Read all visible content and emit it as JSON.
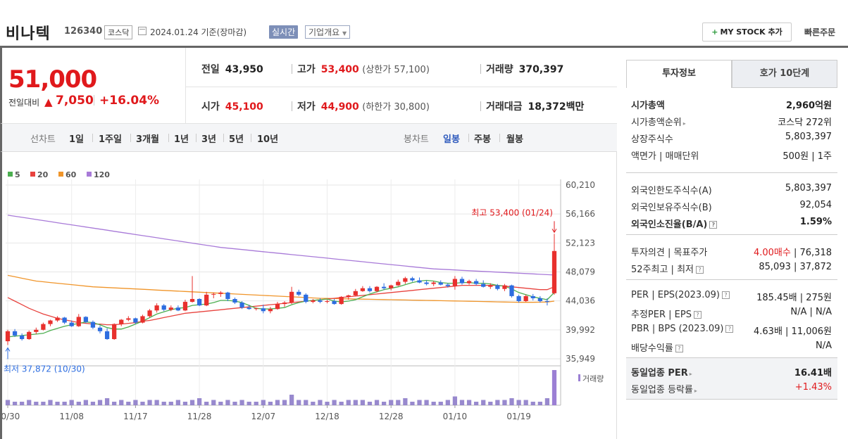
{
  "header": {
    "name": "비나텍",
    "code": "126340",
    "market": "코스닥",
    "date": "2024.01.24 기준(장마감)",
    "realtime": "실시간",
    "company_info": "기업개요",
    "mystock": "MY STOCK 추가",
    "quick_order": "빠른주문"
  },
  "price": {
    "current": "51,000",
    "change_label": "전일대비",
    "change": "7,050",
    "rate": "+16.04%"
  },
  "stats": {
    "prev_label": "전일",
    "prev": "43,950",
    "high_label": "고가",
    "high": "53,400",
    "upper_limit": "(상한가 57,100)",
    "volume_label": "거래량",
    "volume": "370,397",
    "open_label": "시가",
    "open": "45,100",
    "low_label": "저가",
    "low": "44,900",
    "lower_limit": "(하한가 30,800)",
    "amount_label": "거래대금",
    "amount": "18,372",
    "amount_unit": "백만"
  },
  "toolbar": {
    "line_label": "선차트",
    "periods": [
      "1일",
      "1주일",
      "3개월",
      "1년",
      "3년",
      "5년",
      "10년"
    ],
    "candle_label": "봉차트",
    "candles": [
      "일봉",
      "주봉",
      "월봉"
    ],
    "active_candle": "일봉"
  },
  "chart_data": {
    "type": "candlestick",
    "legend": [
      {
        "name": "5",
        "color": "#4caf50"
      },
      {
        "name": "20",
        "color": "#e8433e"
      },
      {
        "name": "60",
        "color": "#f0952a"
      },
      {
        "name": "120",
        "color": "#a87ad8"
      }
    ],
    "y_ticks": [
      "60,210",
      "56,166",
      "52,123",
      "48,079",
      "44,036",
      "39,992",
      "35,949"
    ],
    "ylim": [
      35949,
      60210
    ],
    "x_ticks": [
      "10/30",
      "11/08",
      "11/17",
      "11/28",
      "12/07",
      "12/18",
      "12/28",
      "01/10",
      "01/19"
    ],
    "high_annotation": "최고 53,400 (01/24)",
    "low_annotation": "최저 37,872 (10/30)",
    "volume_label": "거래량",
    "candles": [
      [
        38400,
        40000,
        37872,
        39800
      ],
      [
        39800,
        40100,
        39000,
        39200
      ],
      [
        39200,
        39500,
        38500,
        38700
      ],
      [
        38700,
        39900,
        38600,
        39700
      ],
      [
        39700,
        40300,
        39400,
        40000
      ],
      [
        40000,
        41000,
        39900,
        40800
      ],
      [
        40800,
        41400,
        40500,
        41300
      ],
      [
        41300,
        41900,
        41100,
        41700
      ],
      [
        41700,
        41800,
        40800,
        41000
      ],
      [
        41000,
        41300,
        40400,
        40500
      ],
      [
        40500,
        42200,
        40400,
        41800
      ],
      [
        41800,
        41900,
        40900,
        41100
      ],
      [
        41100,
        41300,
        40100,
        40300
      ],
      [
        40300,
        40600,
        39500,
        39800
      ],
      [
        39800,
        40200,
        38600,
        38700
      ],
      [
        38700,
        40900,
        38600,
        40800
      ],
      [
        40800,
        41500,
        40500,
        41400
      ],
      [
        41400,
        41900,
        41200,
        41600
      ],
      [
        41600,
        41700,
        40800,
        41000
      ],
      [
        41000,
        42100,
        40900,
        41900
      ],
      [
        41900,
        42900,
        41700,
        42700
      ],
      [
        42700,
        43700,
        42400,
        43400
      ],
      [
        43400,
        43600,
        42600,
        42800
      ],
      [
        42800,
        43400,
        42600,
        43100
      ],
      [
        43100,
        43400,
        42600,
        42700
      ],
      [
        42700,
        44200,
        42600,
        43900
      ],
      [
        43900,
        47500,
        43800,
        44300
      ],
      [
        44300,
        44400,
        43300,
        43400
      ],
      [
        43400,
        45300,
        43300,
        44900
      ],
      [
        44900,
        45200,
        44400,
        45000
      ],
      [
        45000,
        45400,
        44600,
        45200
      ],
      [
        45200,
        45300,
        44000,
        44300
      ],
      [
        44300,
        44500,
        43600,
        43800
      ],
      [
        43800,
        44000,
        42900,
        43100
      ],
      [
        43100,
        43500,
        42800,
        42900
      ],
      [
        42900,
        43100,
        42700,
        43000
      ],
      [
        43000,
        43500,
        42300,
        42600
      ],
      [
        42600,
        43200,
        42300,
        42900
      ],
      [
        42900,
        43900,
        42800,
        43600
      ],
      [
        43600,
        44000,
        43200,
        43800
      ],
      [
        43800,
        46000,
        43600,
        45300
      ],
      [
        45300,
        45600,
        44700,
        44900
      ],
      [
        44900,
        45100,
        43700,
        43900
      ],
      [
        43900,
        44300,
        43700,
        44100
      ],
      [
        44100,
        44400,
        43700,
        43900
      ],
      [
        43900,
        44200,
        43700,
        44000
      ],
      [
        44000,
        44300,
        43500,
        43600
      ],
      [
        43600,
        44700,
        43500,
        44600
      ],
      [
        44600,
        44900,
        44200,
        44800
      ],
      [
        44800,
        45700,
        44700,
        45400
      ],
      [
        45400,
        46100,
        45300,
        45800
      ],
      [
        45800,
        46100,
        45200,
        45400
      ],
      [
        45400,
        46100,
        45200,
        46000
      ],
      [
        46000,
        46500,
        45600,
        45800
      ],
      [
        45800,
        46300,
        45500,
        46200
      ],
      [
        46200,
        47000,
        46100,
        46700
      ],
      [
        46700,
        47400,
        46400,
        47200
      ],
      [
        47200,
        47400,
        46700,
        46900
      ],
      [
        46900,
        47300,
        46500,
        46600
      ],
      [
        46600,
        46900,
        46200,
        46400
      ],
      [
        46400,
        46800,
        46100,
        46600
      ],
      [
        46600,
        46900,
        46200,
        46300
      ],
      [
        46300,
        46500,
        45900,
        46100
      ],
      [
        46100,
        47500,
        45600,
        47100
      ],
      [
        47100,
        47400,
        46300,
        46500
      ],
      [
        46500,
        47000,
        46300,
        46800
      ],
      [
        46800,
        47100,
        46200,
        46400
      ],
      [
        46400,
        46900,
        45900,
        46000
      ],
      [
        46000,
        46500,
        45700,
        46200
      ],
      [
        46200,
        46400,
        45500,
        45700
      ],
      [
        45700,
        46400,
        45400,
        46200
      ],
      [
        46200,
        46300,
        44500,
        44700
      ],
      [
        44700,
        44900,
        43800,
        44000
      ],
      [
        44000,
        44900,
        43900,
        44700
      ],
      [
        44700,
        45000,
        44100,
        44400
      ],
      [
        44400,
        44700,
        43800,
        44000
      ],
      [
        44000,
        44400,
        43400,
        43950
      ],
      [
        45100,
        53400,
        44900,
        51000
      ]
    ],
    "volumes": [
      3,
      2,
      2,
      3,
      2,
      2,
      3,
      2,
      2,
      3,
      2,
      3,
      2,
      3,
      4,
      2,
      3,
      2,
      3,
      2,
      3,
      3,
      2,
      2,
      3,
      2,
      3,
      4,
      2,
      3,
      2,
      3,
      2,
      3,
      2,
      2,
      3,
      2,
      3,
      3,
      6,
      3,
      3,
      2,
      3,
      2,
      3,
      2,
      3,
      3,
      3,
      2,
      3,
      2,
      3,
      3,
      4,
      2,
      3,
      3,
      2,
      2,
      3,
      5,
      3,
      3,
      2,
      3,
      2,
      3,
      3,
      4,
      3,
      3,
      2,
      2,
      4,
      20
    ],
    "ma": {
      "ma5": [
        39000,
        39100,
        39200,
        39300,
        39400,
        39500,
        39900,
        40200,
        40500,
        40700,
        40900,
        41100,
        41000,
        40700,
        40300,
        40100,
        40100,
        40400,
        40800,
        41200,
        41700,
        42200,
        42500,
        42800,
        43000,
        43100,
        43400,
        43500,
        43600,
        43800,
        44100,
        44100,
        44000,
        43800,
        43400,
        43000,
        42900,
        42900,
        43000,
        43100,
        43500,
        43800,
        44000,
        44100,
        44200,
        44300,
        44000,
        43900,
        44000,
        44200,
        44600,
        45000,
        45300,
        45600,
        45800,
        46000,
        46300,
        46600,
        46800,
        46900,
        46800,
        46600,
        46500,
        46500,
        46600,
        46600,
        46500,
        46500,
        46400,
        46200,
        46100,
        45700,
        45200,
        44900,
        44600,
        44400,
        44200,
        45200
      ],
      "ma20": [
        44500,
        44000,
        43500,
        43000,
        42600,
        42200,
        41900,
        41600,
        41400,
        41200,
        41000,
        40900,
        40800,
        40800,
        40700,
        40700,
        40800,
        40900,
        41000,
        41200,
        41300,
        41500,
        41700,
        41900,
        42100,
        42300,
        42400,
        42500,
        42600,
        42700,
        42800,
        42900,
        43000,
        43100,
        43200,
        43300,
        43400,
        43500,
        43600,
        43700,
        43800,
        43900,
        44000,
        44100,
        44200,
        44300,
        44400,
        44500,
        44600,
        44700,
        44800,
        44900,
        45000,
        45100,
        45200,
        45300,
        45400,
        45500,
        45600,
        45700,
        45800,
        45900,
        46000,
        46100,
        46200,
        46200,
        46200,
        46200,
        46200,
        46200,
        46100,
        46000,
        45900,
        45800,
        45700,
        45600,
        45600,
        46000
      ],
      "ma60": [
        47600,
        47400,
        47200,
        47000,
        46800,
        46700,
        46600,
        46500,
        46400,
        46300,
        46200,
        46100,
        46000,
        45950,
        45900,
        45850,
        45800,
        45750,
        45700,
        45650,
        45600,
        45550,
        45500,
        45450,
        45400,
        45350,
        45300,
        45250,
        45200,
        45150,
        45100,
        45050,
        45000,
        44950,
        44900,
        44850,
        44800,
        44750,
        44700,
        44650,
        44600,
        44550,
        44500,
        44450,
        44400,
        44380,
        44360,
        44340,
        44320,
        44300,
        44280,
        44260,
        44240,
        44220,
        44200,
        44180,
        44160,
        44140,
        44120,
        44100,
        44080,
        44060,
        44040,
        44020,
        44000,
        43980,
        43960,
        43940,
        43920,
        43900,
        43880,
        43860,
        43840,
        43840,
        43840,
        43860,
        43880,
        44000
      ],
      "ma120": [
        56000,
        55850,
        55700,
        55550,
        55400,
        55250,
        55100,
        54950,
        54800,
        54650,
        54500,
        54350,
        54200,
        54050,
        53900,
        53750,
        53600,
        53450,
        53300,
        53150,
        53000,
        52850,
        52700,
        52550,
        52400,
        52250,
        52100,
        51950,
        51800,
        51650,
        51500,
        51400,
        51300,
        51200,
        51100,
        51000,
        50900,
        50800,
        50700,
        50600,
        50500,
        50400,
        50300,
        50200,
        50100,
        50000,
        49900,
        49800,
        49700,
        49600,
        49500,
        49400,
        49300,
        49200,
        49100,
        49000,
        48900,
        48800,
        48700,
        48600,
        48500,
        48450,
        48400,
        48350,
        48300,
        48250,
        48200,
        48150,
        48100,
        48050,
        48000,
        47950,
        47900,
        47850,
        47800,
        47750,
        47700,
        47650
      ]
    }
  },
  "invest_tabs": [
    "투자정보",
    "호가 10단계"
  ],
  "invest": {
    "group1": [
      {
        "k": "시가총액",
        "v": "2,960억원",
        "bold": true
      },
      {
        "k": "시가총액순위",
        "v": "코스닥 272위",
        "arrow": true
      },
      {
        "k": "상장주식수",
        "v": "5,803,397"
      },
      {
        "k": "액면가 | 매매단위",
        "v": "500원 | 1주"
      }
    ],
    "group2": [
      {
        "k": "외국인한도주식수(A)",
        "v": "5,803,397"
      },
      {
        "k": "외국인보유주식수(B)",
        "v": "92,054"
      },
      {
        "k": "외국인소진율(B/A)",
        "v": "1.59%",
        "bold": true,
        "help": true
      }
    ],
    "group3": [
      {
        "k": "투자의견 | 목표주가",
        "v": "76,318",
        "v_red": "4.00매수"
      },
      {
        "k": "52주최고 | 최저",
        "v": "85,093 | 37,872",
        "help": true
      }
    ],
    "group4": [
      {
        "k": "PER | EPS(2023.09)",
        "v": "185.45배 | 275원",
        "help": true
      },
      {
        "k": "추정PER | EPS",
        "v": "N/A | N/A",
        "help": true
      },
      {
        "k": "PBR | BPS (2023.09)",
        "v": "4.63배 | 11,006원",
        "help": true
      },
      {
        "k": "배당수익률",
        "v": "N/A",
        "help": true
      }
    ],
    "group5": [
      {
        "k": "동일업종 PER",
        "v": "16.41배",
        "bold": true,
        "arrow": true
      },
      {
        "k": "동일업종 등락률",
        "v": "+1.43%",
        "red": true,
        "arrow": true
      }
    ]
  }
}
